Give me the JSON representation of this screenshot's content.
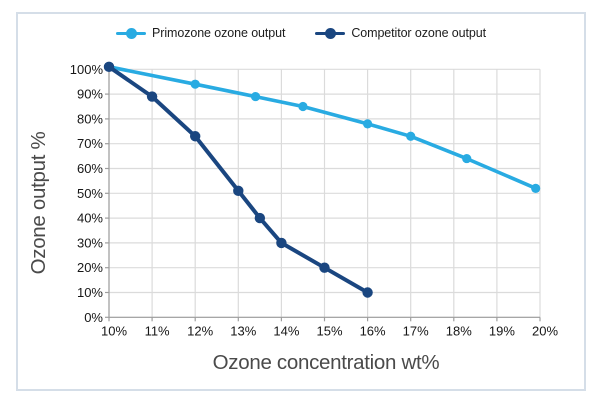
{
  "legend": {
    "items": [
      {
        "label": "Primozone ozone output",
        "color": "#29ABE2"
      },
      {
        "label": "Competitor ozone output",
        "color": "#1A4680"
      }
    ]
  },
  "chart_data": {
    "type": "line",
    "title": "",
    "xlabel": "Ozone concentration wt%",
    "ylabel": "Ozone output %",
    "xlim": [
      10,
      20
    ],
    "ylim": [
      0,
      100
    ],
    "grid": true,
    "legend_position": "top-center",
    "x_ticks": {
      "values": [
        10,
        11,
        12,
        13,
        14,
        15,
        16,
        17,
        18,
        19,
        20
      ],
      "labels": [
        "10%",
        "11%",
        "12%",
        "13%",
        "14%",
        "15%",
        "16%",
        "17%",
        "18%",
        "19%",
        "20%"
      ]
    },
    "y_ticks": {
      "values": [
        0,
        10,
        20,
        30,
        40,
        50,
        60,
        70,
        80,
        90,
        100
      ],
      "labels": [
        "0%",
        "10%",
        "20%",
        "30%",
        "40%",
        "50%",
        "60%",
        "70%",
        "80%",
        "90%",
        "100%"
      ]
    },
    "series": [
      {
        "name": "Primozone ozone output",
        "color": "#29ABE2",
        "x": [
          10,
          12,
          13.4,
          14.5,
          16,
          17,
          18.3,
          19.9
        ],
        "y": [
          101,
          94,
          89,
          85,
          78,
          73,
          64,
          52
        ]
      },
      {
        "name": "Competitor ozone output",
        "color": "#1A4680",
        "x": [
          10,
          11,
          12,
          13,
          13.5,
          14,
          15,
          16
        ],
        "y": [
          101,
          89,
          73,
          51,
          40,
          30,
          20,
          10
        ]
      }
    ]
  },
  "colors": {
    "card_border": "#D5DEE8",
    "grid": "#DBDBDB",
    "axis": "#9E9E9E",
    "tick_text": "#161616",
    "axis_title_text": "#4A4A4A"
  }
}
